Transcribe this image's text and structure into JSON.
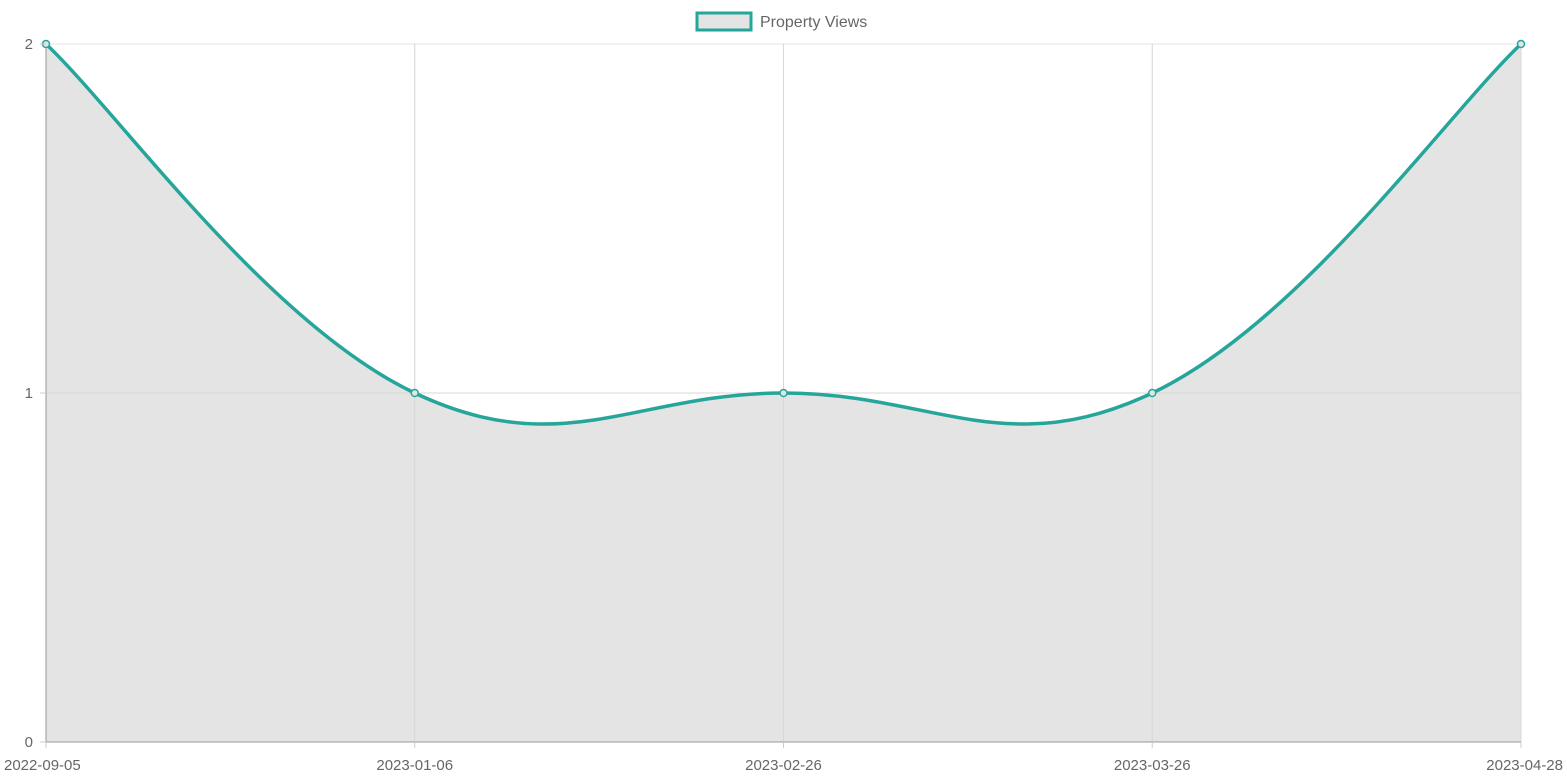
{
  "chart_data": {
    "type": "area",
    "title": "",
    "xlabel": "",
    "ylabel": "",
    "categories": [
      "2022-09-05",
      "2023-01-06",
      "2023-02-26",
      "2023-03-26",
      "2023-04-28"
    ],
    "series": [
      {
        "name": "Property Views",
        "values": [
          2,
          1,
          1,
          1,
          2
        ],
        "line_color": "#26a69a",
        "fill_color": "#e4e4e4"
      }
    ],
    "ylim": [
      0,
      2
    ],
    "yticks": [
      0,
      1,
      2
    ],
    "grid": true,
    "legend_position": "top-center",
    "curve": "smooth"
  }
}
